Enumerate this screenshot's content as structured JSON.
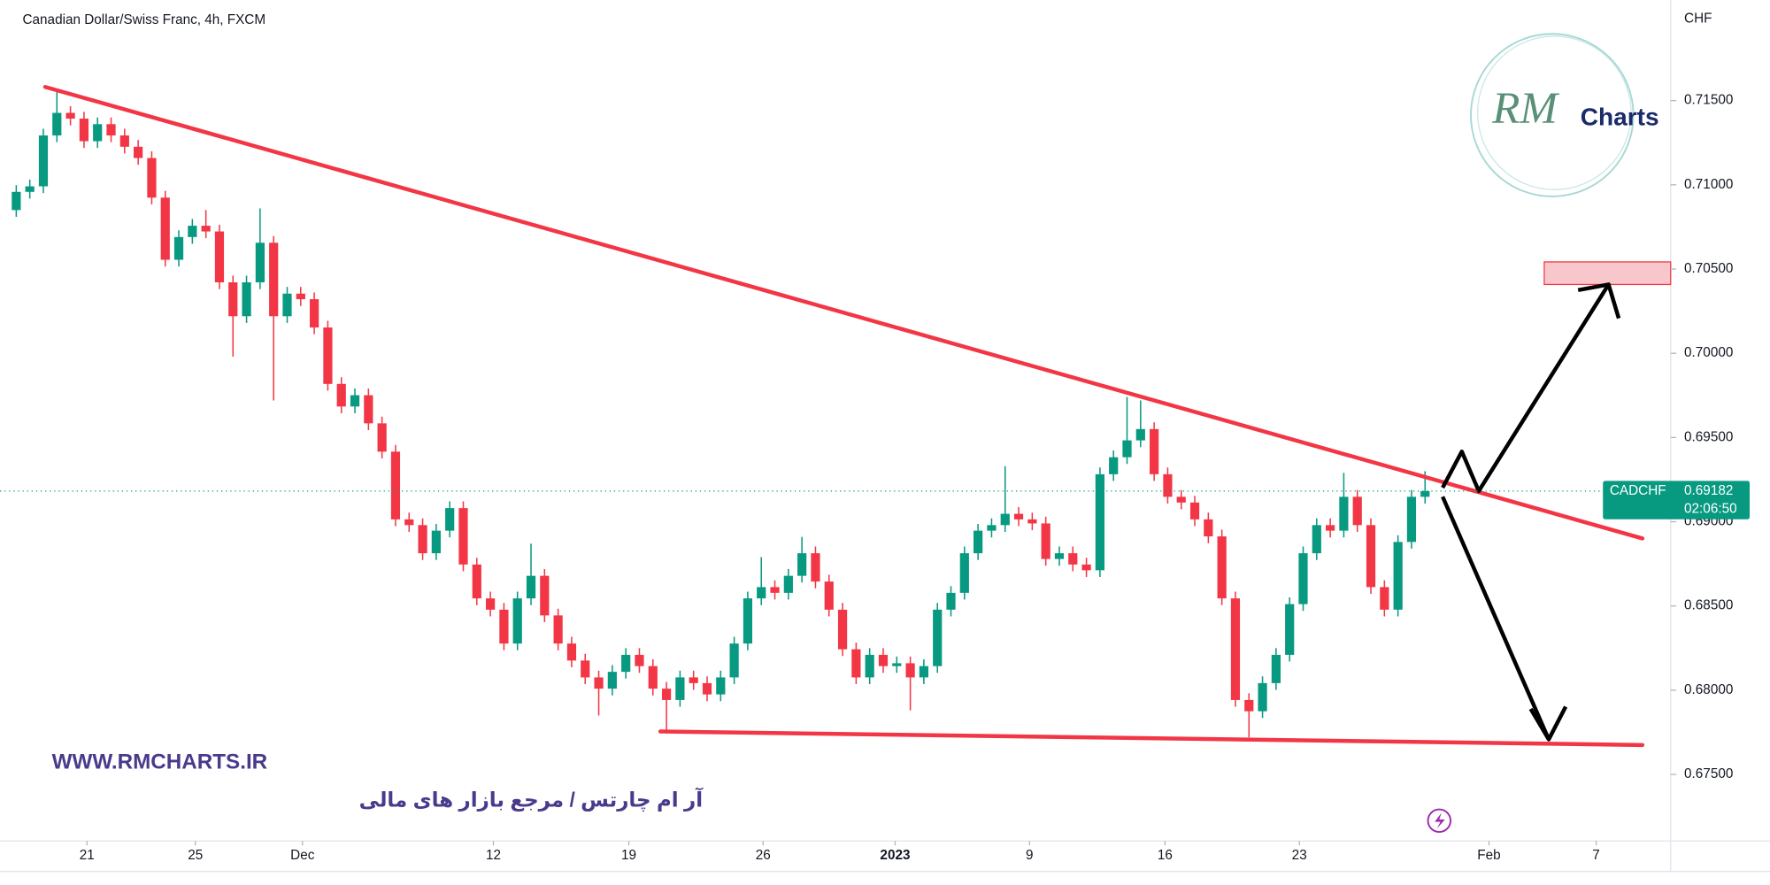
{
  "chart_data": {
    "type": "candlestick",
    "title": "Canadian Dollar/Swiss Franc, 4h, FXCM",
    "currency": "CHF",
    "up_color": "#089981",
    "down_color": "#f23645",
    "grid": false,
    "xlim": [
      -1.2,
      122.13
    ],
    "xticks": [
      {
        "value": 5.22,
        "label": "21"
      },
      {
        "value": 13.22,
        "label": "25"
      },
      {
        "value": 21.13,
        "label": "Dec"
      },
      {
        "value": 35.22,
        "label": "12"
      },
      {
        "value": 45.22,
        "label": "19"
      },
      {
        "value": 55.13,
        "label": "26"
      },
      {
        "value": 64.88,
        "label": "2023"
      },
      {
        "value": 74.8,
        "label": "9"
      },
      {
        "value": 84.8,
        "label": "16"
      },
      {
        "value": 94.72,
        "label": "23"
      },
      {
        "value": 108.72,
        "label": "Feb"
      },
      {
        "value": 116.63,
        "label": "7"
      }
    ],
    "ylim": [
      0.67105,
      0.72097
    ],
    "yticks": [
      {
        "value": 0.675,
        "label": "0.67500"
      },
      {
        "value": 0.68,
        "label": "0.68000"
      },
      {
        "value": 0.685,
        "label": "0.68500"
      },
      {
        "value": 0.69,
        "label": "0.69000"
      },
      {
        "value": 0.695,
        "label": "0.69500"
      },
      {
        "value": 0.7,
        "label": "0.70000"
      },
      {
        "value": 0.705,
        "label": "0.70500"
      },
      {
        "value": 0.71,
        "label": "0.71000"
      },
      {
        "value": 0.715,
        "label": "0.71500"
      }
    ],
    "open": [
      0.7085,
      0.70958,
      0.70991,
      0.71293,
      0.71427,
      0.71393,
      0.71259,
      0.7136,
      0.71293,
      0.71226,
      0.71159,
      0.70924,
      0.70555,
      0.7069,
      0.70757,
      0.70723,
      0.70421,
      0.7022,
      0.70421,
      0.70656,
      0.7022,
      0.70354,
      0.70321,
      0.70153,
      0.69818,
      0.69684,
      0.69751,
      0.69584,
      0.69416,
      0.69014,
      0.6898,
      0.68813,
      0.68947,
      0.69081,
      0.68746,
      0.68545,
      0.68478,
      0.68277,
      0.68545,
      0.68679,
      0.68444,
      0.68277,
      0.68176,
      0.68076,
      0.68009,
      0.68109,
      0.6821,
      0.68143,
      0.68009,
      0.67942,
      0.68076,
      0.68042,
      0.67975,
      0.68076,
      0.68277,
      0.68545,
      0.68612,
      0.68578,
      0.68679,
      0.68813,
      0.68645,
      0.68478,
      0.68243,
      0.68076,
      0.6821,
      0.68143,
      0.6816,
      0.68076,
      0.68143,
      0.68478,
      0.68578,
      0.68813,
      0.68947,
      0.6898,
      0.69047,
      0.69014,
      0.6899,
      0.68779,
      0.68813,
      0.68746,
      0.68712,
      0.69282,
      0.69383,
      0.69483,
      0.6955,
      0.69282,
      0.69148,
      0.69114,
      0.69014,
      0.68913,
      0.68545,
      0.67942,
      0.67875,
      0.68042,
      0.6821,
      0.68511,
      0.68813,
      0.6898,
      0.68947,
      0.69148,
      0.6898,
      0.68612,
      0.68478,
      0.6888,
      0.69148
    ],
    "high": [
      0.70998,
      0.71031,
      0.71333,
      0.7156,
      0.71467,
      0.71433,
      0.714,
      0.714,
      0.71333,
      0.71266,
      0.71199,
      0.70964,
      0.7073,
      0.70797,
      0.7085,
      0.70763,
      0.70461,
      0.70461,
      0.7086,
      0.70696,
      0.70394,
      0.70394,
      0.70361,
      0.70193,
      0.69858,
      0.69791,
      0.69791,
      0.69624,
      0.69456,
      0.69054,
      0.6902,
      0.68987,
      0.69121,
      0.69121,
      0.68786,
      0.68585,
      0.68518,
      0.68585,
      0.6887,
      0.68719,
      0.68484,
      0.68317,
      0.68216,
      0.68116,
      0.68149,
      0.6825,
      0.6825,
      0.68183,
      0.68049,
      0.68116,
      0.68116,
      0.68082,
      0.68116,
      0.68317,
      0.68585,
      0.6879,
      0.68652,
      0.68719,
      0.6891,
      0.68853,
      0.68685,
      0.68518,
      0.68283,
      0.6825,
      0.6825,
      0.682,
      0.682,
      0.68183,
      0.68518,
      0.68618,
      0.68853,
      0.68987,
      0.6902,
      0.6933,
      0.69087,
      0.69054,
      0.6903,
      0.68853,
      0.68853,
      0.68786,
      0.69322,
      0.69423,
      0.6974,
      0.6972,
      0.6959,
      0.69322,
      0.69188,
      0.69154,
      0.69054,
      0.68953,
      0.68585,
      0.67982,
      0.68082,
      0.6825,
      0.68551,
      0.68853,
      0.6902,
      0.6902,
      0.6929,
      0.69188,
      0.6902,
      0.68652,
      0.6892,
      0.69188,
      0.693
    ],
    "low": [
      0.7081,
      0.70918,
      0.70951,
      0.71253,
      0.71353,
      0.71219,
      0.71219,
      0.71253,
      0.71186,
      0.71119,
      0.70884,
      0.70515,
      0.70515,
      0.7065,
      0.70683,
      0.70381,
      0.6998,
      0.7018,
      0.70381,
      0.6972,
      0.7018,
      0.70281,
      0.70113,
      0.69778,
      0.69644,
      0.69644,
      0.69544,
      0.69376,
      0.68974,
      0.6894,
      0.68773,
      0.68773,
      0.68907,
      0.68706,
      0.68505,
      0.68438,
      0.68237,
      0.68237,
      0.68505,
      0.68404,
      0.68237,
      0.68136,
      0.68036,
      0.6785,
      0.67969,
      0.68069,
      0.68103,
      0.67969,
      0.6776,
      0.67902,
      0.68002,
      0.67935,
      0.67935,
      0.68036,
      0.68237,
      0.68505,
      0.68538,
      0.68538,
      0.68639,
      0.68605,
      0.68438,
      0.68203,
      0.68036,
      0.68036,
      0.68103,
      0.68103,
      0.6788,
      0.68036,
      0.68103,
      0.68438,
      0.68538,
      0.68773,
      0.68907,
      0.6894,
      0.68974,
      0.6895,
      0.68739,
      0.68739,
      0.68706,
      0.68672,
      0.68672,
      0.69242,
      0.69343,
      0.69443,
      0.69242,
      0.69108,
      0.69074,
      0.68974,
      0.68873,
      0.68505,
      0.67902,
      0.6772,
      0.67835,
      0.68002,
      0.6817,
      0.68471,
      0.68773,
      0.68907,
      0.68907,
      0.6894,
      0.68572,
      0.68438,
      0.68438,
      0.6884,
      0.69108
    ],
    "close": [
      0.70958,
      0.70991,
      0.71293,
      0.71427,
      0.71393,
      0.71259,
      0.7136,
      0.71293,
      0.71226,
      0.71159,
      0.70924,
      0.70555,
      0.7069,
      0.70757,
      0.70723,
      0.70421,
      0.7022,
      0.70421,
      0.70656,
      0.7022,
      0.70354,
      0.70321,
      0.70153,
      0.69818,
      0.69684,
      0.69751,
      0.69584,
      0.69416,
      0.69014,
      0.6898,
      0.68813,
      0.68947,
      0.69081,
      0.68746,
      0.68545,
      0.68478,
      0.68277,
      0.68545,
      0.68679,
      0.68444,
      0.68277,
      0.68176,
      0.68076,
      0.68009,
      0.68109,
      0.6821,
      0.68143,
      0.68009,
      0.67942,
      0.68076,
      0.68042,
      0.67975,
      0.68076,
      0.68277,
      0.68545,
      0.68612,
      0.68578,
      0.68679,
      0.68813,
      0.68645,
      0.68478,
      0.68243,
      0.68076,
      0.6821,
      0.68143,
      0.6816,
      0.68076,
      0.68143,
      0.68478,
      0.68578,
      0.68813,
      0.68947,
      0.6898,
      0.69047,
      0.69014,
      0.6899,
      0.68779,
      0.68813,
      0.68746,
      0.68712,
      0.69282,
      0.69383,
      0.69483,
      0.6955,
      0.69282,
      0.69148,
      0.69114,
      0.69014,
      0.68913,
      0.68545,
      0.67942,
      0.67875,
      0.68042,
      0.6821,
      0.68511,
      0.68813,
      0.6898,
      0.68947,
      0.69148,
      0.6898,
      0.68612,
      0.68478,
      0.6888,
      0.69148,
      0.69182
    ],
    "price_tag": {
      "symbol": "CADCHF",
      "countdown": "02:06:50"
    }
  },
  "logo": {
    "mark": "RM",
    "text": "Charts"
  },
  "watermark": {
    "url": "WWW.RMCHARTS.IR",
    "tagline": "آر ام چارتس / مرجع بازار های مالی"
  }
}
